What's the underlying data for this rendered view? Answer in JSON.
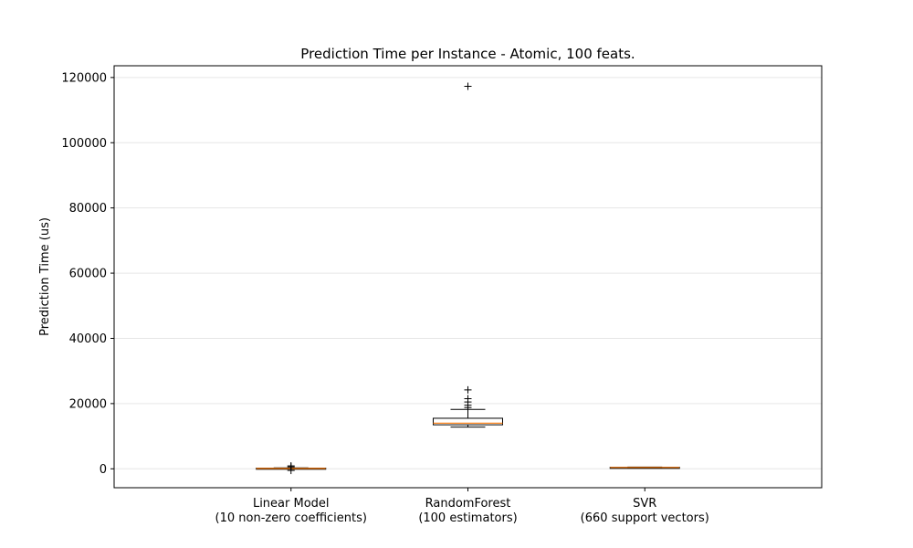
{
  "chart_data": {
    "type": "box",
    "title": "Prediction Time per Instance - Atomic, 100 feats.",
    "xlabel": "",
    "ylabel": "Prediction Time (us)",
    "ylim": [
      -5800,
      123600
    ],
    "yticks": [
      0,
      20000,
      40000,
      60000,
      80000,
      100000,
      120000
    ],
    "ytick_labels": [
      "0",
      "20000",
      "40000",
      "60000",
      "80000",
      "100000",
      "120000"
    ],
    "grid": "horizontal",
    "categories": [
      {
        "label_line1": "Linear Model",
        "label_line2": "(10 non-zero coefficients)"
      },
      {
        "label_line1": "RandomForest",
        "label_line2": "(100 estimators)"
      },
      {
        "label_line1": "SVR",
        "label_line2": "(660 support vectors)"
      }
    ],
    "boxes": [
      {
        "whisker_low": 0,
        "q1": 60,
        "median": 120,
        "q3": 200,
        "whisker_high": 300,
        "outliers": [
          600,
          900,
          -500
        ]
      },
      {
        "whisker_low": 12800,
        "q1": 13500,
        "median": 14000,
        "q3": 15500,
        "whisker_high": 18200,
        "outliers": [
          18800,
          19500,
          20500,
          21500,
          24200,
          117300
        ]
      },
      {
        "whisker_low": 300,
        "q1": 400,
        "median": 420,
        "q3": 460,
        "whisker_high": 520,
        "outliers": []
      }
    ],
    "colors": {
      "median": "#ff7f0e",
      "box": "#000000",
      "grid": "#e6e6e6"
    }
  }
}
